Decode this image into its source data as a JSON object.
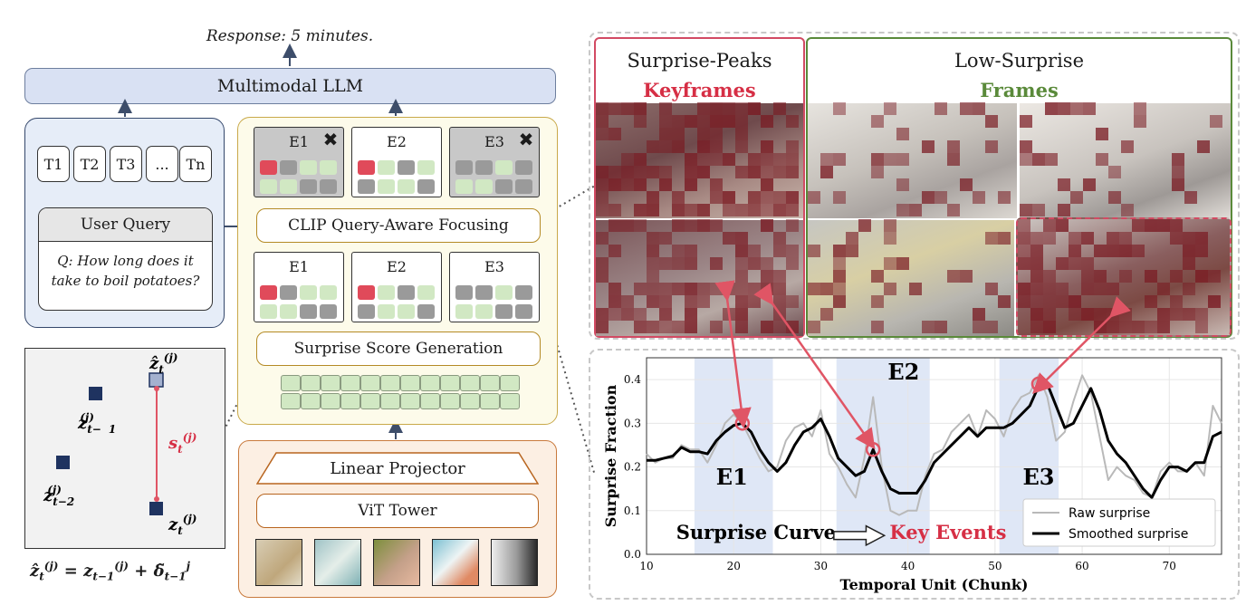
{
  "response": "Response: 5 minutes.",
  "llm_label": "Multimodal LLM",
  "tokens": [
    "T1",
    "T2",
    "T3",
    "...",
    "Tn"
  ],
  "user_query": {
    "title": "User Query",
    "text_line1": "Q: How long does it",
    "text_line2": "take to boil potatoes?"
  },
  "events_top": [
    "E1",
    "E2",
    "E3"
  ],
  "events_bottom": [
    "E1",
    "E2",
    "E3"
  ],
  "clip_label": "CLIP Query-Aware Focusing",
  "surprise_gen_label": "Surprise Score Generation",
  "linear_projector_label": "Linear Projector",
  "vit_label": "ViT Tower",
  "frames": {
    "key_title": "Surprise-Peaks",
    "key_sub": "Keyframes",
    "low_title": "Low-Surprise",
    "low_sub": "Frames"
  },
  "colors": {
    "red": "#d62f45",
    "green": "#5a8a3a",
    "navy": "#1f3360",
    "band": "#dfe7f6"
  },
  "chart_data": {
    "type": "line",
    "xlabel": "Temporal Unit (Chunk)",
    "ylabel": "Surprise Fraction",
    "xlim": [
      10,
      76
    ],
    "ylim": [
      0.0,
      0.45
    ],
    "xticks": [
      10,
      20,
      30,
      40,
      50,
      60,
      70
    ],
    "yticks": [
      0.0,
      0.1,
      0.2,
      0.3,
      0.4
    ],
    "grid": true,
    "legend_position": "bottom-right",
    "bands": [
      {
        "name": "E1",
        "x0": 15.5,
        "x1": 24.5
      },
      {
        "name": "E2",
        "x0": 31.8,
        "x1": 42.5
      },
      {
        "name": "E3",
        "x0": 50.5,
        "x1": 57.3
      }
    ],
    "annotations": [
      "E1",
      "E2",
      "E3"
    ],
    "bottom_caption_left": "Surprise Curve",
    "bottom_caption_right": "Key Events",
    "markers": [
      {
        "x": 21,
        "y": 0.3
      },
      {
        "x": 36,
        "y": 0.24
      },
      {
        "x": 55,
        "y": 0.39
      }
    ],
    "series": [
      {
        "name": "Raw surprise",
        "x": [
          10,
          11,
          12,
          13,
          14,
          15,
          16,
          17,
          18,
          19,
          20,
          21,
          22,
          23,
          24,
          25,
          26,
          27,
          28,
          29,
          30,
          31,
          32,
          33,
          34,
          35,
          36,
          37,
          38,
          39,
          40,
          41,
          42,
          43,
          44,
          45,
          46,
          47,
          48,
          49,
          50,
          51,
          52,
          53,
          54,
          55,
          56,
          57,
          58,
          59,
          60,
          61,
          62,
          63,
          64,
          65,
          66,
          67,
          68,
          69,
          70,
          71,
          72,
          73,
          74,
          75,
          76
        ],
        "values": [
          0.23,
          0.21,
          0.22,
          0.22,
          0.25,
          0.24,
          0.24,
          0.21,
          0.25,
          0.3,
          0.32,
          0.3,
          0.26,
          0.22,
          0.19,
          0.2,
          0.26,
          0.29,
          0.3,
          0.27,
          0.33,
          0.23,
          0.2,
          0.16,
          0.13,
          0.22,
          0.36,
          0.2,
          0.1,
          0.09,
          0.1,
          0.1,
          0.18,
          0.23,
          0.24,
          0.28,
          0.3,
          0.32,
          0.27,
          0.33,
          0.31,
          0.27,
          0.33,
          0.36,
          0.37,
          0.41,
          0.36,
          0.26,
          0.28,
          0.35,
          0.41,
          0.37,
          0.27,
          0.17,
          0.2,
          0.18,
          0.17,
          0.14,
          0.13,
          0.19,
          0.21,
          0.19,
          0.19,
          0.21,
          0.18,
          0.34,
          0.3
        ]
      },
      {
        "name": "Smoothed surprise",
        "x": [
          10,
          11,
          12,
          13,
          14,
          15,
          16,
          17,
          18,
          19,
          20,
          21,
          22,
          23,
          24,
          25,
          26,
          27,
          28,
          29,
          30,
          31,
          32,
          33,
          34,
          35,
          36,
          37,
          38,
          39,
          40,
          41,
          42,
          43,
          44,
          45,
          46,
          47,
          48,
          49,
          50,
          51,
          52,
          53,
          54,
          55,
          56,
          57,
          58,
          59,
          60,
          61,
          62,
          63,
          64,
          65,
          66,
          67,
          68,
          69,
          70,
          71,
          72,
          73,
          74,
          75,
          76
        ],
        "values": [
          0.215,
          0.215,
          0.22,
          0.225,
          0.245,
          0.235,
          0.235,
          0.23,
          0.26,
          0.28,
          0.295,
          0.3,
          0.28,
          0.24,
          0.21,
          0.19,
          0.21,
          0.25,
          0.28,
          0.29,
          0.31,
          0.27,
          0.22,
          0.2,
          0.18,
          0.19,
          0.24,
          0.19,
          0.15,
          0.14,
          0.14,
          0.14,
          0.17,
          0.21,
          0.23,
          0.25,
          0.27,
          0.29,
          0.27,
          0.29,
          0.29,
          0.29,
          0.3,
          0.32,
          0.34,
          0.385,
          0.39,
          0.34,
          0.29,
          0.3,
          0.34,
          0.38,
          0.33,
          0.26,
          0.23,
          0.21,
          0.18,
          0.15,
          0.13,
          0.17,
          0.2,
          0.2,
          0.19,
          0.21,
          0.21,
          0.27,
          0.28
        ]
      }
    ]
  }
}
